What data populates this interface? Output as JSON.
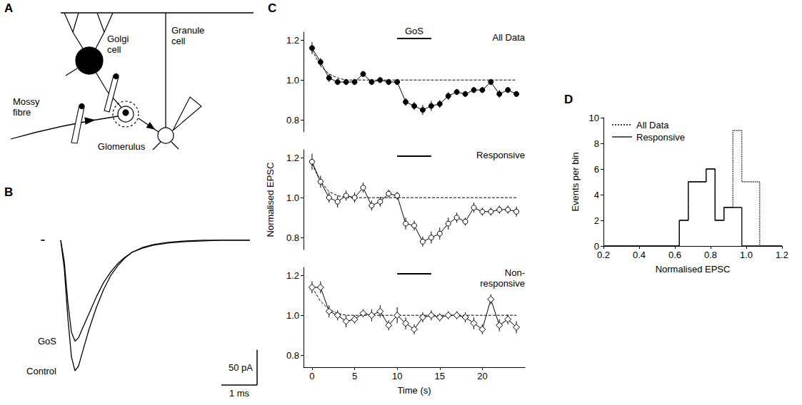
{
  "diagram": {
    "panel": "A",
    "labels": {
      "golgi": "Golgi cell",
      "granule": "Granule cell",
      "mossy": "Mossy fibre",
      "glomerulus": "Glomerulus"
    }
  },
  "chart_data": [
    {
      "panel": "B",
      "type": "line",
      "tick_labels": false,
      "x": [
        -0.55,
        -0.45,
        -0.3,
        0,
        0.1,
        0.2,
        0.3,
        0.4,
        0.5,
        0.6,
        0.8,
        1.0,
        1.2,
        1.4,
        1.6,
        1.8,
        2.0,
        2.3,
        2.6,
        3.0,
        3.5,
        4.0,
        4.5,
        5.0,
        5.3
      ],
      "xlim": [
        -0.7,
        5.5
      ],
      "ylim": [
        -205,
        12
      ],
      "series": [
        {
          "name": "Control",
          "color": "#000000",
          "values": [
            0,
            0,
            null,
            0,
            -40,
            -110,
            -165,
            -185,
            -178,
            -160,
            -125,
            -95,
            -70,
            -50,
            -36,
            -25,
            -17,
            -10,
            -6,
            -3,
            -1,
            0,
            0,
            0,
            0
          ]
        },
        {
          "name": "GoS",
          "color": "#000000",
          "values": [
            0,
            0,
            null,
            0,
            -30,
            -88,
            -130,
            -143,
            -138,
            -126,
            -103,
            -80,
            -60,
            -45,
            -33,
            -24,
            -17,
            -11,
            -7,
            -4,
            -2,
            -1,
            0,
            0,
            0
          ]
        }
      ],
      "scale_bar": {
        "x": 1,
        "x_label": "1 ms",
        "y": 50,
        "y_label": "50 pA"
      }
    },
    {
      "panel": "C",
      "type": "line",
      "title": "All Data",
      "tick_labels": "y",
      "x": [
        0,
        1,
        2,
        3,
        4,
        5,
        6,
        7,
        8,
        9,
        10,
        11,
        12,
        13,
        14,
        15,
        16,
        17,
        18,
        19,
        20,
        21,
        22,
        23,
        24
      ],
      "xlim": [
        -1,
        25
      ],
      "ylim": [
        0.74,
        1.24
      ],
      "yticks": [
        0.8,
        {
          "value": 1,
          "label": "1.0"
        },
        1.2
      ],
      "stimulus": {
        "start": 10,
        "end": 14,
        "label": "GoS"
      },
      "series": [
        {
          "color": "#000000",
          "marker": "circle",
          "values": [
            1.16,
            1.09,
            1.01,
            0.99,
            0.99,
            0.99,
            1.03,
            0.99,
            1.0,
            0.99,
            0.99,
            0.89,
            0.87,
            0.85,
            0.87,
            0.88,
            0.92,
            0.94,
            0.93,
            0.95,
            0.95,
            0.99,
            0.93,
            0.95,
            0.93
          ],
          "errors": [
            0.03,
            0.02,
            0.02,
            0.015,
            0.015,
            0.015,
            0.015,
            0.015,
            0.015,
            0.015,
            0.015,
            0.02,
            0.02,
            0.025,
            0.025,
            0.02,
            0.02,
            0.015,
            0.015,
            0.015,
            0.015,
            0.015,
            0.02,
            0.015,
            0.015
          ]
        },
        {
          "color": "#000000",
          "marker": "none",
          "line_style": "dashed",
          "values": [
            1.15,
            1.07,
            1.03,
            1.01,
            1.0,
            1.0,
            1.0,
            1.0,
            1.0,
            1.0,
            1.0,
            1.0,
            1.0,
            1.0,
            1.0,
            1.0,
            1.0,
            1.0,
            1.0,
            1.0,
            1.0,
            1.0,
            1.0,
            1.0,
            1.0
          ]
        }
      ]
    },
    {
      "type": "line",
      "title": "Responsive",
      "ylabel": "Normalised EPSC",
      "tick_labels": "y",
      "x": [
        0,
        1,
        2,
        3,
        4,
        5,
        6,
        7,
        8,
        9,
        10,
        11,
        12,
        13,
        14,
        15,
        16,
        17,
        18,
        19,
        20,
        21,
        22,
        23,
        24
      ],
      "xlim": [
        -1,
        25
      ],
      "ylim": [
        0.74,
        1.24
      ],
      "yticks": [
        0.8,
        {
          "value": 1,
          "label": "1.0"
        },
        1.2
      ],
      "stimulus": {
        "start": 10,
        "end": 14
      },
      "series": [
        {
          "color": "#000000",
          "marker": "open_circle",
          "values": [
            1.18,
            1.08,
            1.0,
            0.98,
            1.01,
            1.0,
            1.05,
            0.96,
            0.98,
            1.02,
            1.01,
            0.87,
            0.86,
            0.78,
            0.8,
            0.82,
            0.87,
            0.9,
            0.88,
            0.95,
            0.93,
            0.93,
            0.94,
            0.94,
            0.93
          ],
          "errors": [
            0.04,
            0.03,
            0.025,
            0.03,
            0.025,
            0.025,
            0.025,
            0.025,
            0.025,
            0.02,
            0.02,
            0.03,
            0.025,
            0.025,
            0.03,
            0.03,
            0.03,
            0.025,
            0.02,
            0.025,
            0.02,
            0.02,
            0.02,
            0.02,
            0.025
          ]
        },
        {
          "color": "#000000",
          "marker": "none",
          "line_style": "dashed",
          "values": [
            1.17,
            1.08,
            1.03,
            1.01,
            1.0,
            1.0,
            1.0,
            1.0,
            1.0,
            1.0,
            1.0,
            1.0,
            1.0,
            1.0,
            1.0,
            1.0,
            1.0,
            1.0,
            1.0,
            1.0,
            1.0,
            1.0,
            1.0,
            1.0,
            1.0
          ]
        }
      ]
    },
    {
      "type": "line",
      "title": "Non-responsive",
      "xlabel": "Time (s)",
      "x": [
        0,
        1,
        2,
        3,
        4,
        5,
        6,
        7,
        8,
        9,
        10,
        11,
        12,
        13,
        14,
        15,
        16,
        17,
        18,
        19,
        20,
        21,
        22,
        23,
        24
      ],
      "xlim": [
        -1,
        25
      ],
      "xticks": [
        0,
        5,
        10,
        15,
        20
      ],
      "ylim": [
        0.74,
        1.24
      ],
      "yticks": [
        0.8,
        {
          "value": 1,
          "label": "1.0"
        },
        1.2
      ],
      "stimulus": {
        "start": 10,
        "end": 14
      },
      "series": [
        {
          "color": "#000000",
          "marker": "open_diamond",
          "values": [
            1.14,
            1.14,
            1.02,
            1.0,
            0.97,
            0.98,
            1.01,
            1.0,
            1.02,
            0.95,
            1.0,
            0.96,
            0.93,
            0.99,
            1.0,
            0.99,
            1.0,
            1.0,
            0.99,
            0.96,
            0.93,
            1.08,
            0.95,
            0.98,
            0.94
          ],
          "errors": [
            0.03,
            0.03,
            0.03,
            0.025,
            0.03,
            0.02,
            0.02,
            0.03,
            0.03,
            0.025,
            0.04,
            0.03,
            0.025,
            0.025,
            0.025,
            0.02,
            0.02,
            0.02,
            0.025,
            0.03,
            0.025,
            0.025,
            0.03,
            0.025,
            0.03
          ]
        },
        {
          "color": "#000000",
          "marker": "none",
          "line_style": "dashed",
          "values": [
            1.14,
            1.07,
            1.03,
            1.01,
            1.0,
            1.0,
            1.0,
            1.0,
            1.0,
            1.0,
            1.0,
            1.0,
            1.0,
            1.0,
            1.0,
            1.0,
            1.0,
            1.0,
            1.0,
            1.0,
            1.0,
            1.0,
            1.0,
            1.0,
            1.0
          ]
        }
      ]
    },
    {
      "panel": "D",
      "type": "histogram",
      "xlabel": "Normalised EPSC",
      "ylabel": "Events per bin",
      "bins": [
        0.625,
        0.675,
        0.725,
        0.775,
        0.825,
        0.875,
        0.925,
        0.975,
        1.025,
        1.075
      ],
      "xlim": [
        0.2,
        1.2
      ],
      "xticks": [
        0.2,
        0.4,
        0.6,
        0.8,
        {
          "value": 1,
          "label": "1.0"
        },
        1.2
      ],
      "ylim": [
        0,
        10
      ],
      "yticks": [
        0,
        2,
        4,
        6,
        8,
        10
      ],
      "legend": "top-left",
      "series": [
        {
          "name": "All Data",
          "color": "#000000",
          "line_style": "dotted",
          "values": [
            2,
            5,
            5,
            6,
            2,
            3,
            9,
            5,
            5
          ]
        },
        {
          "name": "Responsive",
          "color": "#000000",
          "line_style": "solid",
          "values": [
            2,
            5,
            5,
            6,
            2,
            3,
            3,
            0,
            0
          ]
        }
      ]
    }
  ]
}
